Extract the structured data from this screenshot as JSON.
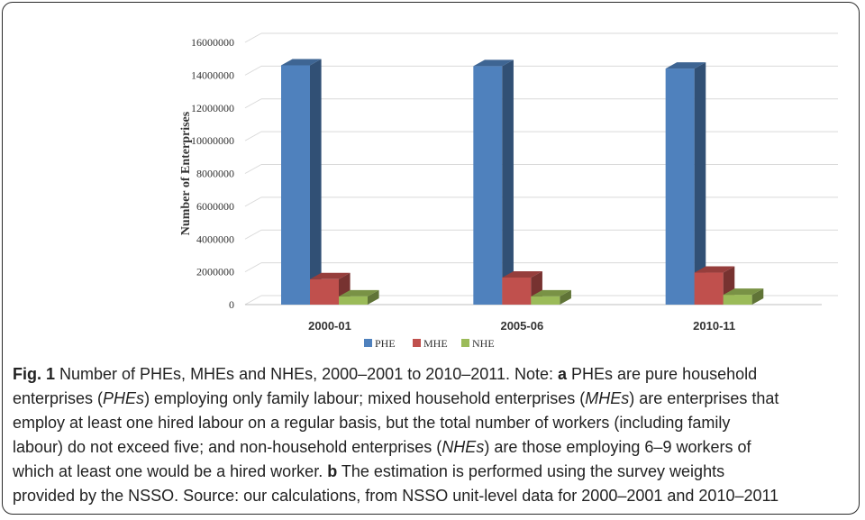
{
  "chart_data": {
    "type": "bar",
    "ylabel": "Number of Enterprises",
    "xlabel": "",
    "categories": [
      "2000-01",
      "2005-06",
      "2010-11"
    ],
    "series": [
      {
        "name": "PHE",
        "values": [
          14600000,
          14550000,
          14400000
        ],
        "color": "#4f81bd"
      },
      {
        "name": "MHE",
        "values": [
          1550000,
          1650000,
          1950000
        ],
        "color": "#c0504d"
      },
      {
        "name": "NHE",
        "values": [
          500000,
          500000,
          600000
        ],
        "color": "#9bbb59"
      }
    ],
    "ylim": [
      0,
      16000000
    ],
    "yticks": [
      "0",
      "2000000",
      "4000000",
      "6000000",
      "8000000",
      "10000000",
      "12000000",
      "14000000",
      "16000000"
    ],
    "grid": true,
    "legend_position": "bottom",
    "style": "3d-column"
  },
  "caption": {
    "fig_label": "Fig. 1",
    "title_text": " Number of PHEs, MHEs and NHEs, 2000–2001 to 2010–2011. Note: ",
    "a_label": "a",
    "l1_rest": " PHEs are pure household",
    "l2_pre": "enterprises (",
    "phes": "PHEs",
    "l2_mid": ") employing only family labour; mixed household enterprises (",
    "mhes": "MHEs",
    "l2_post": ") are enterprises that",
    "l3": "employ at least one hired labour on a regular basis, but the total number of workers (including family",
    "l4_pre": "labour) do not exceed five; and non-household enterprises (",
    "nhes": "NHEs",
    "l4_post": ") are those employing 6–9 workers of",
    "l5_pre": "which at least one would be a hired worker. ",
    "b_label": "b",
    "l5_post": " The estimation is performed using the survey weights",
    "l6": "provided by the NSSO. Source: our calculations, from NSSO unit-level data for 2000–2001 and 2010–2011"
  }
}
